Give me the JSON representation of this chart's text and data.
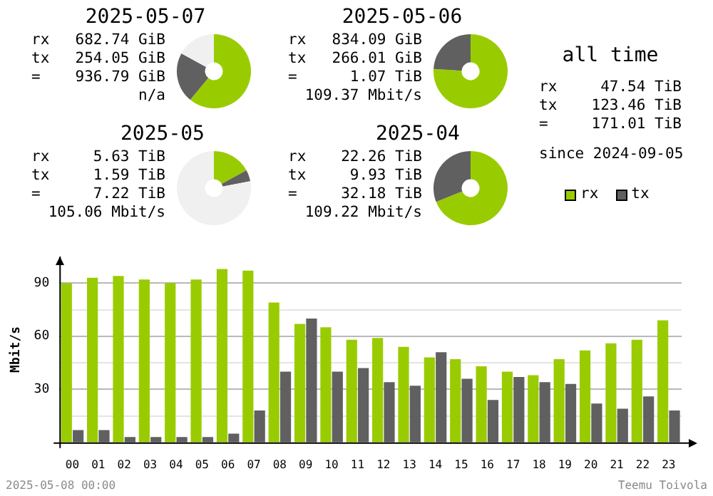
{
  "chart_data": [
    {
      "type": "donut",
      "title": "2025-05-07",
      "categories": [
        null,
        null,
        null
      ],
      "values": [
        61,
        22,
        17
      ],
      "colors": [
        "#99cc00",
        "#606060",
        "#f0f0f0"
      ],
      "annotations": [
        "rx 682.74 GiB",
        "tx 254.05 GiB",
        "= 936.79 GiB",
        "n/a"
      ]
    },
    {
      "type": "donut",
      "title": "2025-05-06",
      "categories": [
        null,
        null
      ],
      "values": [
        76,
        24
      ],
      "colors": [
        "#99cc00",
        "#606060"
      ],
      "annotations": [
        "rx 834.09 GiB",
        "tx 266.01 GiB",
        "= 1.07 TiB",
        "109.37 Mbit/s"
      ]
    },
    {
      "type": "other",
      "title": "all time",
      "annotations": [
        "rx 47.54 TiB",
        "tx 123.46 TiB",
        "= 171.01 TiB",
        "since 2024-09-05"
      ]
    },
    {
      "type": "donut",
      "title": "2025-05",
      "categories": [
        null,
        null,
        null
      ],
      "values": [
        17,
        5,
        78
      ],
      "colors": [
        "#99cc00",
        "#606060",
        "#f0f0f0"
      ],
      "annotations": [
        "rx 5.63 TiB",
        "tx 1.59 TiB",
        "= 7.22 TiB",
        "105.06 Mbit/s"
      ]
    },
    {
      "type": "donut",
      "title": "2025-04",
      "categories": [
        null,
        null
      ],
      "values": [
        69,
        31
      ],
      "colors": [
        "#99cc00",
        "#606060"
      ],
      "annotations": [
        "rx 22.26 TiB",
        "tx 9.93 TiB",
        "= 32.18 TiB",
        "109.22 Mbit/s"
      ]
    },
    {
      "type": "bar",
      "ylabel": "Mbit/s",
      "categories": [
        "00",
        "01",
        "02",
        "03",
        "04",
        "05",
        "06",
        "07",
        "08",
        "09",
        "10",
        "11",
        "12",
        "13",
        "14",
        "15",
        "16",
        "17",
        "18",
        "19",
        "20",
        "21",
        "22",
        "23"
      ],
      "series": [
        {
          "name": "rx",
          "color": "#99cc00",
          "values": [
            90,
            93,
            94,
            92,
            90,
            92,
            98,
            97,
            79,
            67,
            65,
            58,
            59,
            54,
            48,
            47,
            43,
            40,
            38,
            47,
            52,
            56,
            58,
            69
          ]
        },
        {
          "name": "tx",
          "color": "#606060",
          "values": [
            7,
            7,
            3,
            3,
            3,
            3,
            5,
            18,
            40,
            70,
            40,
            42,
            34,
            32,
            51,
            36,
            24,
            37,
            34,
            33,
            22,
            19,
            26,
            18
          ]
        }
      ],
      "ylim": [
        0,
        105
      ],
      "yticks": [
        {
          "value": 15,
          "label": null
        },
        30,
        {
          "value": 45,
          "label": null
        },
        60,
        {
          "value": 75,
          "label": null
        },
        90
      ],
      "grid": "y",
      "legend": "top right",
      "annotations": [
        "2025-05-08 00:00",
        "Teemu Toivola"
      ]
    }
  ]
}
